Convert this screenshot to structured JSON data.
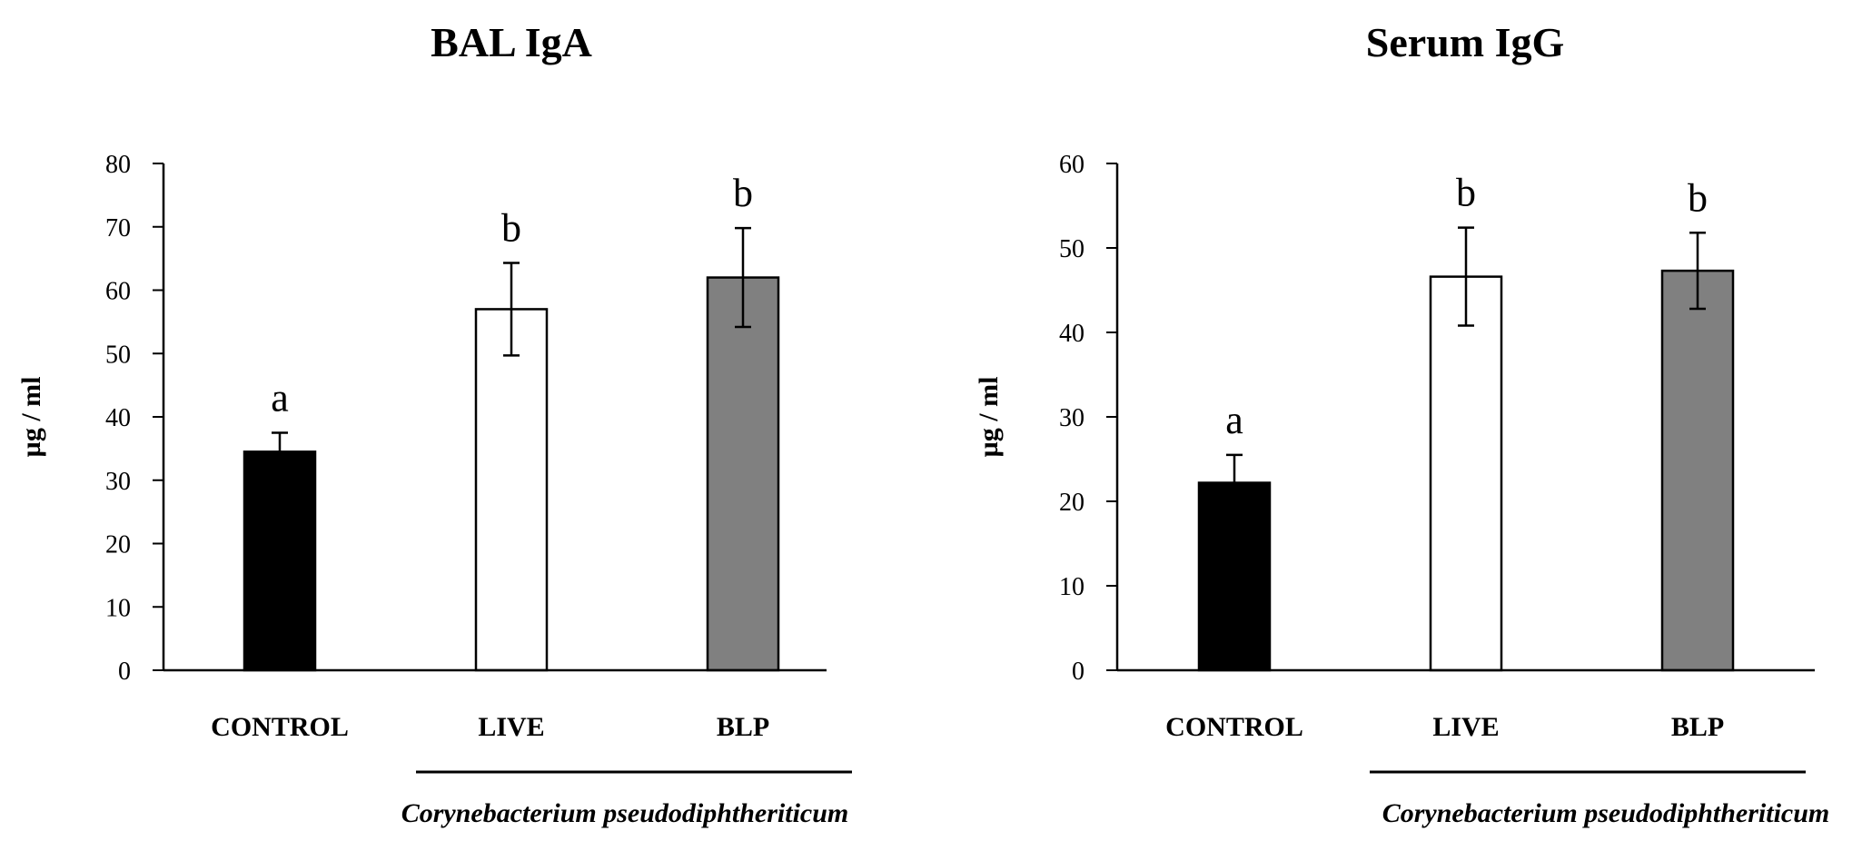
{
  "chart_data": [
    {
      "type": "bar",
      "title": "BAL IgA",
      "ylabel": "µg / ml",
      "xlabel": "",
      "ylim": [
        0,
        80
      ],
      "yticks": [
        0,
        10,
        20,
        30,
        40,
        50,
        60,
        70,
        80
      ],
      "categories": [
        "CONTROL",
        "LIVE",
        "BLP"
      ],
      "values": [
        34.5,
        57,
        62
      ],
      "errors": [
        3,
        7.3,
        7.8
      ],
      "significance": [
        "a",
        "b",
        "b"
      ],
      "bar_colors": [
        "#000000",
        "#ffffff",
        "#808080"
      ],
      "group_label": "Corynebacterium pseudodiphtheriticum"
    },
    {
      "type": "bar",
      "title": "Serum IgG",
      "ylabel": "µg / ml",
      "xlabel": "",
      "ylim": [
        0,
        60
      ],
      "yticks": [
        0,
        10,
        20,
        30,
        40,
        50,
        60
      ],
      "categories": [
        "CONTROL",
        "LIVE",
        "BLP"
      ],
      "values": [
        22.2,
        46.6,
        47.3
      ],
      "errors": [
        3.3,
        5.8,
        4.5
      ],
      "significance": [
        "a",
        "b",
        "b"
      ],
      "bar_colors": [
        "#000000",
        "#ffffff",
        "#808080"
      ],
      "group_label": "Corynebacterium pseudodiphtheriticum"
    }
  ]
}
